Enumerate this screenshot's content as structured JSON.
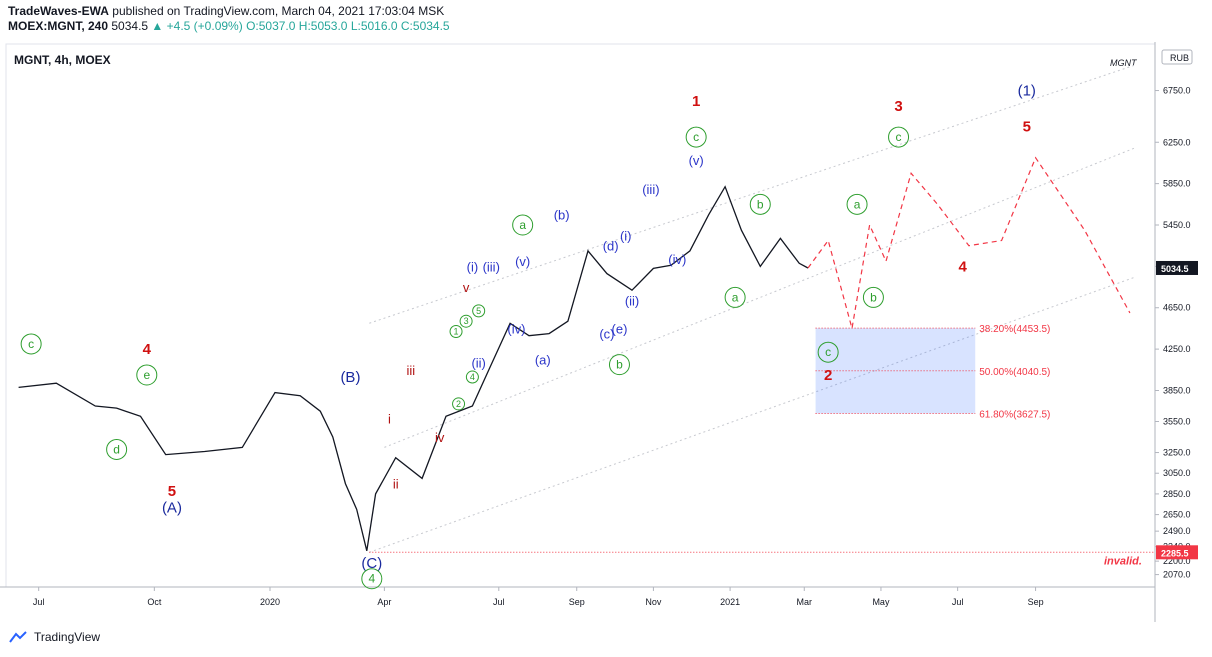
{
  "header": {
    "author": "TradeWaves-EWA",
    "published": "published on TradingView.com, March 04, 2021 17:03:04 MSK",
    "symbol": "MOEX:MGNT, 240",
    "last": "5034.5",
    "change": "+4.5 (+0.09%)",
    "o": "O:5037.0",
    "h": "H:5053.0",
    "l": "L:5016.0",
    "c": "C:5034.5"
  },
  "footer": {
    "brand": "TradingView"
  },
  "chart_data": {
    "type": "line",
    "title": "MGNT, 4h, MOEX",
    "watermark": "MGNT",
    "currency": "RUB",
    "x_tick_labels": [
      "Jul",
      "Oct",
      "2020",
      "Apr",
      "Jul",
      "Sep",
      "Nov",
      "2021",
      "Mar",
      "May",
      "Jul",
      "Sep"
    ],
    "y_tick_labels": [
      6750,
      6250,
      5850,
      5450,
      5050,
      4650,
      4250,
      3850,
      3550,
      3250,
      3050,
      2850,
      2650,
      2490,
      2340,
      2200,
      2070
    ],
    "ylim": [
      1950,
      7200
    ],
    "price_series": {
      "name": "MGNT close",
      "x": [
        "2019-06-15",
        "2019-07-15",
        "2019-08-15",
        "2019-09-01",
        "2019-09-20",
        "2019-10-10",
        "2019-11-10",
        "2019-12-10",
        "2020-01-05",
        "2020-01-25",
        "2020-02-10",
        "2020-02-20",
        "2020-03-01",
        "2020-03-10",
        "2020-03-18",
        "2020-03-25",
        "2020-04-10",
        "2020-05-01",
        "2020-05-20",
        "2020-06-10",
        "2020-06-25",
        "2020-07-10",
        "2020-07-25",
        "2020-08-10",
        "2020-08-25",
        "2020-09-10",
        "2020-09-25",
        "2020-10-15",
        "2020-11-01",
        "2020-11-15",
        "2020-11-30",
        "2020-12-15",
        "2020-12-28",
        "2021-01-10",
        "2021-01-25",
        "2021-02-10",
        "2021-02-25",
        "2021-03-04"
      ],
      "values": [
        3880,
        3920,
        3700,
        3680,
        3600,
        3230,
        3260,
        3300,
        3830,
        3800,
        3650,
        3400,
        2950,
        2700,
        2300,
        2850,
        3200,
        3000,
        3600,
        3700,
        4100,
        4500,
        4380,
        4400,
        4520,
        5200,
        4980,
        4820,
        5030,
        5060,
        5200,
        5550,
        5820,
        5400,
        5050,
        5320,
        5080,
        5034.5
      ]
    },
    "projection": {
      "name": "projected path",
      "x": [
        "2021-03-04",
        "2021-03-20",
        "2021-04-08",
        "2021-04-22",
        "2021-05-05",
        "2021-05-25",
        "2021-06-15",
        "2021-07-10",
        "2021-08-05",
        "2021-09-01",
        "2021-10-10",
        "2021-11-15"
      ],
      "values": [
        5034.5,
        5300,
        4450,
        5450,
        5100,
        5950,
        5650,
        5250,
        5300,
        6100,
        5400,
        4600
      ]
    },
    "fib_levels": [
      {
        "label": "38.20%(4453.5)",
        "value": 4453.5
      },
      {
        "label": "50.00%(4040.5)",
        "value": 4040.5
      },
      {
        "label": "61.80%(3627.5)",
        "value": 3627.5
      }
    ],
    "price_markers": [
      {
        "label": "5034.5",
        "value": 5034.5
      },
      {
        "label": "2285.5",
        "value": 2285.5
      }
    ],
    "invalid_label": "invalid.",
    "wave_labels": [
      {
        "t": "c",
        "x": "2019-06-25",
        "y": 4300,
        "style": "green-circle"
      },
      {
        "t": "4",
        "x": "2019-09-25",
        "y": 4250,
        "style": "red"
      },
      {
        "t": "e",
        "x": "2019-09-25",
        "y": 4000,
        "style": "green-circle"
      },
      {
        "t": "d",
        "x": "2019-09-01",
        "y": 3280,
        "style": "green-circle"
      },
      {
        "t": "5",
        "x": "2019-10-15",
        "y": 2880,
        "style": "red"
      },
      {
        "t": "(A)",
        "x": "2019-10-15",
        "y": 2720,
        "style": "navy"
      },
      {
        "t": "(B)",
        "x": "2020-03-05",
        "y": 3980,
        "style": "navy"
      },
      {
        "t": "(C)",
        "x": "2020-03-22",
        "y": 2180,
        "style": "navy"
      },
      {
        "t": "4",
        "x": "2020-03-22",
        "y": 2030,
        "style": "green-circle"
      },
      {
        "t": "i",
        "x": "2020-04-05",
        "y": 3580,
        "style": "darkred"
      },
      {
        "t": "ii",
        "x": "2020-04-10",
        "y": 2950,
        "style": "darkred"
      },
      {
        "t": "iii",
        "x": "2020-04-22",
        "y": 4050,
        "style": "darkred"
      },
      {
        "t": "iv",
        "x": "2020-05-15",
        "y": 3400,
        "style": "darkred"
      },
      {
        "t": "v",
        "x": "2020-06-05",
        "y": 4850,
        "style": "darkred"
      },
      {
        "t": "1",
        "x": "2020-05-28",
        "y": 4420,
        "style": "green-circle-small"
      },
      {
        "t": "2",
        "x": "2020-05-30",
        "y": 3720,
        "style": "green-circle-small"
      },
      {
        "t": "3",
        "x": "2020-06-05",
        "y": 4520,
        "style": "green-circle-small"
      },
      {
        "t": "4",
        "x": "2020-06-10",
        "y": 3980,
        "style": "green-circle-small"
      },
      {
        "t": "5",
        "x": "2020-06-15",
        "y": 4620,
        "style": "green-circle-small"
      },
      {
        "t": "(i)",
        "x": "2020-06-10",
        "y": 5050,
        "style": "blue"
      },
      {
        "t": "(ii)",
        "x": "2020-06-15",
        "y": 4120,
        "style": "blue"
      },
      {
        "t": "(iii)",
        "x": "2020-06-25",
        "y": 5050,
        "style": "blue"
      },
      {
        "t": "(iv)",
        "x": "2020-07-15",
        "y": 4450,
        "style": "blue"
      },
      {
        "t": "(v)",
        "x": "2020-07-20",
        "y": 5100,
        "style": "blue"
      },
      {
        "t": "a",
        "x": "2020-07-20",
        "y": 5450,
        "style": "green-circle"
      },
      {
        "t": "(a)",
        "x": "2020-08-05",
        "y": 4150,
        "style": "blue"
      },
      {
        "t": "(b)",
        "x": "2020-08-20",
        "y": 5550,
        "style": "blue"
      },
      {
        "t": "(c)",
        "x": "2020-09-25",
        "y": 4400,
        "style": "blue"
      },
      {
        "t": "(d)",
        "x": "2020-09-28",
        "y": 5250,
        "style": "blue"
      },
      {
        "t": "(e)",
        "x": "2020-10-05",
        "y": 4450,
        "style": "blue"
      },
      {
        "t": "b",
        "x": "2020-10-05",
        "y": 4100,
        "style": "green-circle"
      },
      {
        "t": "(i)",
        "x": "2020-10-10",
        "y": 5350,
        "style": "blue"
      },
      {
        "t": "(ii)",
        "x": "2020-10-15",
        "y": 4720,
        "style": "blue"
      },
      {
        "t": "(iii)",
        "x": "2020-10-30",
        "y": 5800,
        "style": "blue"
      },
      {
        "t": "(iv)",
        "x": "2020-11-20",
        "y": 5120,
        "style": "blue"
      },
      {
        "t": "(v)",
        "x": "2020-12-05",
        "y": 6080,
        "style": "blue"
      },
      {
        "t": "c",
        "x": "2020-12-05",
        "y": 6300,
        "style": "green-circle"
      },
      {
        "t": "1",
        "x": "2020-12-05",
        "y": 6650,
        "style": "red"
      },
      {
        "t": "b",
        "x": "2021-01-25",
        "y": 5650,
        "style": "green-circle"
      },
      {
        "t": "a",
        "x": "2021-01-05",
        "y": 4750,
        "style": "green-circle"
      },
      {
        "t": "c",
        "x": "2021-03-20",
        "y": 4220,
        "style": "green-circle"
      },
      {
        "t": "2",
        "x": "2021-03-20",
        "y": 4000,
        "style": "red"
      },
      {
        "t": "a",
        "x": "2021-04-12",
        "y": 5650,
        "style": "green-circle"
      },
      {
        "t": "b",
        "x": "2021-04-25",
        "y": 4750,
        "style": "green-circle"
      },
      {
        "t": "c",
        "x": "2021-05-15",
        "y": 6300,
        "style": "green-circle"
      },
      {
        "t": "3",
        "x": "2021-05-15",
        "y": 6600,
        "style": "red"
      },
      {
        "t": "4",
        "x": "2021-07-05",
        "y": 5050,
        "style": "red"
      },
      {
        "t": "(1)",
        "x": "2021-08-25",
        "y": 6750,
        "style": "navy"
      },
      {
        "t": "5",
        "x": "2021-08-25",
        "y": 6400,
        "style": "red"
      }
    ]
  }
}
